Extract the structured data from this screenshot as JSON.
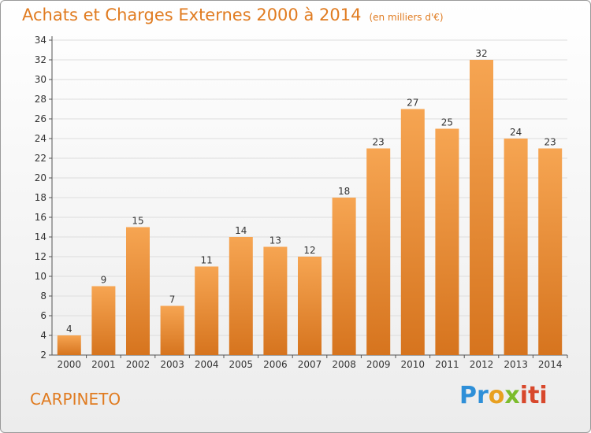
{
  "title": "Achats et Charges Externes 2000 à 2014",
  "subtitle": "(en milliers d'€)",
  "city": "CARPINETO",
  "brand": {
    "p1": "Pr",
    "p2": "o",
    "p3": "x",
    "p4": "iti"
  },
  "colors": {
    "accent": "#e07b20",
    "bar_top": "#f6a552",
    "bar_bottom": "#d6741e",
    "grid": "#dddddd"
  },
  "chart_data": {
    "type": "bar",
    "title": "Achats et Charges Externes 2000 à 2014",
    "subtitle": "(en milliers d'€)",
    "xlabel": "",
    "ylabel": "",
    "categories": [
      "2000",
      "2001",
      "2002",
      "2003",
      "2004",
      "2005",
      "2006",
      "2007",
      "2008",
      "2009",
      "2010",
      "2011",
      "2012",
      "2013",
      "2014"
    ],
    "values": [
      4,
      9,
      15,
      7,
      11,
      14,
      13,
      12,
      18,
      23,
      27,
      25,
      32,
      24,
      23
    ],
    "ylim": [
      2,
      34
    ],
    "yticks": [
      2,
      4,
      6,
      8,
      10,
      12,
      14,
      16,
      18,
      20,
      22,
      24,
      26,
      28,
      30,
      32,
      34
    ],
    "grid": true,
    "data_labels": true
  }
}
